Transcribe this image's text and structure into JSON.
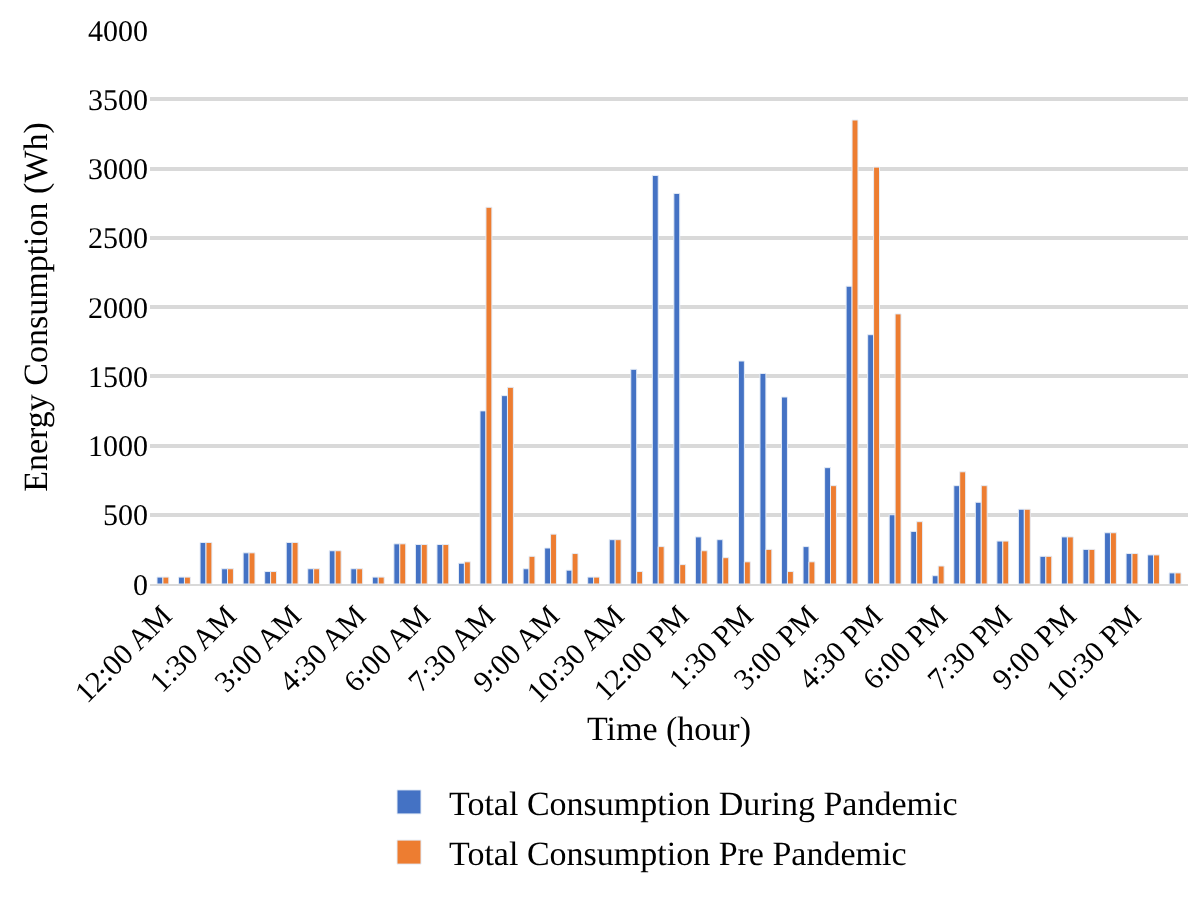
{
  "chart_data": {
    "type": "bar",
    "xlabel": "Time (hour)",
    "ylabel": "Energy Consumption (Wh)",
    "categories": [
      "12:00 AM",
      null,
      null,
      "1:30 AM",
      null,
      null,
      "3:00 AM",
      null,
      null,
      "4:30 AM",
      null,
      null,
      "6:00 AM",
      null,
      null,
      "7:30 AM",
      null,
      null,
      "9:00 AM",
      null,
      null,
      "10:30 AM",
      null,
      null,
      "12:00 PM",
      null,
      null,
      "1:30 PM",
      null,
      null,
      "3:00 PM",
      null,
      null,
      "4:30 PM",
      null,
      null,
      "6:00 PM",
      null,
      null,
      "7:30 PM",
      null,
      null,
      "9:00 PM",
      null,
      null,
      "10:30 PM",
      null,
      null
    ],
    "series": [
      {
        "name": "Total Consumption During Pandemic",
        "color": "#4472c4",
        "values": [
          50,
          50,
          300,
          110,
          225,
          90,
          300,
          110,
          240,
          110,
          50,
          290,
          285,
          285,
          150,
          1250,
          1360,
          110,
          260,
          100,
          50,
          320,
          1550,
          2950,
          2820,
          340,
          320,
          1610,
          1520,
          1350,
          270,
          840,
          2150,
          1800,
          500,
          380,
          60,
          710,
          590,
          310,
          540,
          200,
          340,
          250,
          370,
          220,
          210,
          80
        ]
      },
      {
        "name": "Total Consumption Pre Pandemic",
        "color": "#ed7d31",
        "values": [
          50,
          50,
          300,
          110,
          225,
          90,
          300,
          110,
          240,
          110,
          50,
          290,
          285,
          285,
          160,
          2720,
          1420,
          200,
          360,
          220,
          50,
          320,
          90,
          270,
          140,
          240,
          190,
          160,
          250,
          90,
          160,
          710,
          3350,
          3010,
          1950,
          450,
          130,
          810,
          710,
          310,
          540,
          200,
          340,
          250,
          370,
          220,
          210,
          80
        ]
      }
    ],
    "ylim": [
      0,
      4000
    ],
    "yticks": [
      0,
      500,
      1000,
      1500,
      2000,
      2500,
      3000,
      3500,
      4000
    ],
    "grid": "y",
    "legend": "bottom"
  }
}
